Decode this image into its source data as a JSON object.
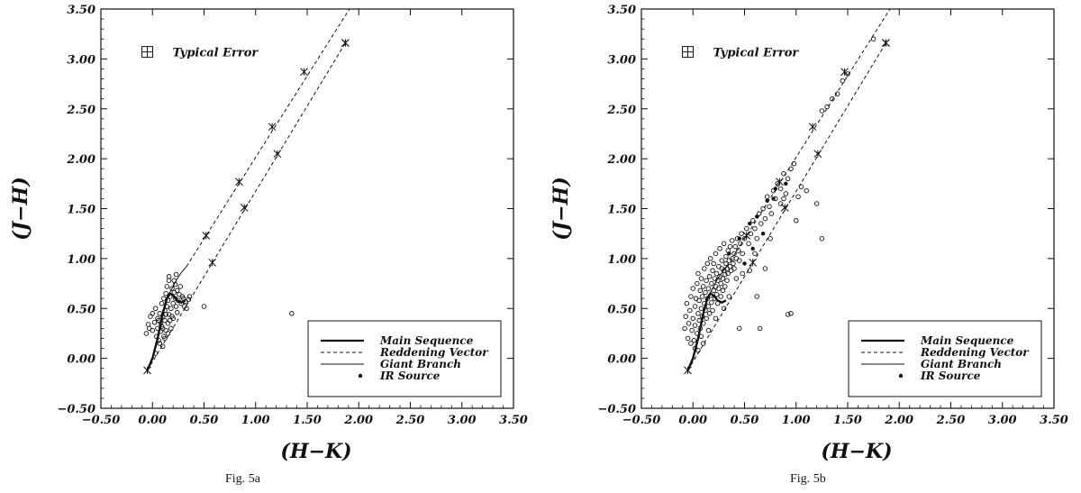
{
  "chart_data": [
    {
      "type": "scatter",
      "panel_id": "a",
      "caption_prefix": "Fig. ",
      "caption_label": "5a",
      "xlabel": "(H−K)",
      "ylabel": "(J−H)",
      "xlim": [
        -0.5,
        3.5
      ],
      "ylim": [
        -0.5,
        3.5
      ],
      "ticks": [
        "-0.50",
        "0.00",
        "0.50",
        "1.00",
        "1.50",
        "2.00",
        "2.50",
        "3.00",
        "3.50"
      ],
      "grid": false,
      "typical_error_label": "Typical Error",
      "legend": {
        "placement": "bottom-right",
        "entries": [
          {
            "label": "Main Sequence",
            "style": "thick-solid"
          },
          {
            "label": "Reddening Vector",
            "style": "dashed"
          },
          {
            "label": "Giant Branch",
            "style": "thin-solid"
          },
          {
            "label": "IR Source",
            "style": "dot"
          }
        ]
      },
      "main_sequence": [
        [
          -0.05,
          -0.12
        ],
        [
          0.0,
          0.0
        ],
        [
          0.05,
          0.2
        ],
        [
          0.1,
          0.45
        ],
        [
          0.14,
          0.6
        ],
        [
          0.17,
          0.65
        ],
        [
          0.2,
          0.63
        ],
        [
          0.24,
          0.58
        ],
        [
          0.28,
          0.56
        ],
        [
          0.32,
          0.58
        ]
      ],
      "giant_branch": [
        [
          0.12,
          0.58
        ],
        [
          0.18,
          0.68
        ],
        [
          0.23,
          0.78
        ],
        [
          0.28,
          0.86
        ],
        [
          0.33,
          0.92
        ]
      ],
      "reddening_vectors": [
        [
          [
            -0.05,
            -0.12
          ],
          [
            1.87,
            3.16
          ]
        ],
        [
          [
            0.33,
            0.92
          ],
          [
            1.91,
            3.5
          ]
        ]
      ],
      "reddening_markers": [
        [
          -0.05,
          -0.12
        ],
        [
          0.52,
          1.23
        ],
        [
          0.84,
          1.77
        ],
        [
          1.16,
          2.32
        ],
        [
          1.47,
          2.87
        ],
        [
          1.87,
          3.16
        ],
        [
          0.58,
          0.96
        ],
        [
          0.89,
          1.51
        ],
        [
          1.21,
          2.05
        ],
        [
          1.87,
          3.16
        ]
      ],
      "ir_sources": [],
      "points": [
        [
          -0.06,
          0.25
        ],
        [
          -0.04,
          0.34
        ],
        [
          -0.02,
          0.42
        ],
        [
          0.0,
          0.28
        ],
        [
          0.02,
          0.36
        ],
        [
          0.03,
          0.5
        ],
        [
          0.04,
          0.22
        ],
        [
          0.05,
          0.3
        ],
        [
          0.05,
          0.4
        ],
        [
          0.06,
          0.18
        ],
        [
          0.07,
          0.45
        ],
        [
          0.08,
          0.27
        ],
        [
          0.08,
          0.35
        ],
        [
          0.09,
          0.55
        ],
        [
          0.1,
          0.3
        ],
        [
          0.1,
          0.42
        ],
        [
          0.11,
          0.6
        ],
        [
          0.11,
          0.22
        ],
        [
          0.12,
          0.38
        ],
        [
          0.12,
          0.48
        ],
        [
          0.13,
          0.65
        ],
        [
          0.13,
          0.28
        ],
        [
          0.14,
          0.52
        ],
        [
          0.14,
          0.72
        ],
        [
          0.15,
          0.35
        ],
        [
          0.15,
          0.58
        ],
        [
          0.16,
          0.44
        ],
        [
          0.16,
          0.78
        ],
        [
          0.17,
          0.62
        ],
        [
          0.18,
          0.3
        ],
        [
          0.18,
          0.5
        ],
        [
          0.19,
          0.7
        ],
        [
          0.2,
          0.55
        ],
        [
          0.2,
          0.4
        ],
        [
          0.21,
          0.66
        ],
        [
          0.22,
          0.74
        ],
        [
          0.22,
          0.6
        ],
        [
          0.23,
          0.52
        ],
        [
          0.24,
          0.68
        ],
        [
          0.25,
          0.58
        ],
        [
          0.26,
          0.64
        ],
        [
          0.27,
          0.72
        ],
        [
          0.28,
          0.55
        ],
        [
          0.29,
          0.62
        ],
        [
          0.3,
          0.6
        ],
        [
          0.31,
          0.52
        ],
        [
          0.32,
          0.57
        ],
        [
          0.33,
          0.5
        ],
        [
          0.35,
          0.59
        ],
        [
          0.36,
          0.62
        ],
        [
          0.5,
          0.52
        ],
        [
          1.35,
          0.45
        ],
        [
          0.09,
          0.32
        ],
        [
          0.15,
          0.25
        ],
        [
          0.07,
          0.15
        ],
        [
          0.03,
          0.05
        ],
        [
          0.12,
          0.2
        ],
        [
          -0.03,
          0.3
        ],
        [
          0.0,
          0.45
        ],
        [
          0.19,
          0.42
        ],
        [
          0.24,
          0.46
        ],
        [
          0.17,
          0.38
        ],
        [
          0.1,
          0.12
        ],
        [
          0.06,
          0.38
        ],
        [
          0.13,
          0.44
        ],
        [
          0.21,
          0.78
        ],
        [
          0.23,
          0.84
        ],
        [
          0.16,
          0.82
        ]
      ]
    },
    {
      "type": "scatter",
      "panel_id": "b",
      "caption_prefix": "Fig. ",
      "caption_label": "5b",
      "xlabel": "(H−K)",
      "ylabel": "(J−H)",
      "xlim": [
        -0.5,
        3.5
      ],
      "ylim": [
        -0.5,
        3.5
      ],
      "ticks": [
        "-0.50",
        "0.00",
        "0.50",
        "1.00",
        "1.50",
        "2.00",
        "2.50",
        "3.00",
        "3.50"
      ],
      "grid": false,
      "typical_error_label": "Typical Error",
      "legend": {
        "placement": "bottom-right",
        "entries": [
          {
            "label": "Main Sequence",
            "style": "thick-solid"
          },
          {
            "label": "Reddening Vector",
            "style": "dashed"
          },
          {
            "label": "Giant Branch",
            "style": "thin-solid"
          },
          {
            "label": "IR Source",
            "style": "dot"
          }
        ]
      },
      "main_sequence": [
        [
          -0.05,
          -0.12
        ],
        [
          0.0,
          0.0
        ],
        [
          0.05,
          0.2
        ],
        [
          0.1,
          0.45
        ],
        [
          0.14,
          0.6
        ],
        [
          0.17,
          0.65
        ],
        [
          0.2,
          0.63
        ],
        [
          0.24,
          0.58
        ],
        [
          0.28,
          0.56
        ],
        [
          0.32,
          0.58
        ]
      ],
      "giant_branch": [
        [
          0.12,
          0.58
        ],
        [
          0.18,
          0.68
        ],
        [
          0.23,
          0.78
        ],
        [
          0.28,
          0.86
        ],
        [
          0.33,
          0.92
        ]
      ],
      "reddening_vectors": [
        [
          [
            -0.05,
            -0.12
          ],
          [
            1.87,
            3.16
          ]
        ],
        [
          [
            0.33,
            0.92
          ],
          [
            1.91,
            3.5
          ]
        ]
      ],
      "reddening_markers": [
        [
          -0.05,
          -0.12
        ],
        [
          0.52,
          1.23
        ],
        [
          0.84,
          1.77
        ],
        [
          1.16,
          2.32
        ],
        [
          1.47,
          2.87
        ],
        [
          1.87,
          3.16
        ],
        [
          0.58,
          0.96
        ],
        [
          0.89,
          1.51
        ],
        [
          1.21,
          2.05
        ],
        [
          1.87,
          3.16
        ]
      ],
      "ir_sources": [
        [
          0.55,
          1.35
        ],
        [
          0.62,
          1.42
        ],
        [
          0.72,
          1.58
        ],
        [
          0.8,
          1.7
        ],
        [
          0.45,
          1.2
        ],
        [
          0.35,
          1.05
        ],
        [
          0.68,
          1.25
        ],
        [
          0.5,
          0.95
        ],
        [
          0.78,
          1.6
        ],
        [
          0.9,
          1.75
        ],
        [
          0.58,
          1.1
        ]
      ],
      "points": [
        [
          -0.08,
          0.3
        ],
        [
          -0.07,
          0.42
        ],
        [
          -0.06,
          0.55
        ],
        [
          -0.05,
          0.2
        ],
        [
          -0.04,
          0.35
        ],
        [
          -0.03,
          0.48
        ],
        [
          -0.02,
          0.62
        ],
        [
          -0.01,
          0.28
        ],
        [
          0.0,
          0.4
        ],
        [
          0.0,
          0.7
        ],
        [
          0.01,
          0.18
        ],
        [
          0.02,
          0.52
        ],
        [
          0.02,
          0.33
        ],
        [
          0.03,
          0.6
        ],
        [
          0.04,
          0.75
        ],
        [
          0.04,
          0.25
        ],
        [
          0.05,
          0.45
        ],
        [
          0.05,
          0.85
        ],
        [
          0.06,
          0.38
        ],
        [
          0.06,
          0.58
        ],
        [
          0.07,
          0.68
        ],
        [
          0.07,
          0.3
        ],
        [
          0.08,
          0.5
        ],
        [
          0.08,
          0.8
        ],
        [
          0.09,
          0.42
        ],
        [
          0.09,
          0.62
        ],
        [
          0.1,
          0.72
        ],
        [
          0.1,
          0.35
        ],
        [
          0.11,
          0.55
        ],
        [
          0.11,
          0.9
        ],
        [
          0.12,
          0.48
        ],
        [
          0.12,
          0.66
        ],
        [
          0.13,
          0.78
        ],
        [
          0.13,
          0.4
        ],
        [
          0.14,
          0.6
        ],
        [
          0.14,
          0.95
        ],
        [
          0.15,
          0.52
        ],
        [
          0.15,
          0.7
        ],
        [
          0.16,
          0.82
        ],
        [
          0.16,
          0.45
        ],
        [
          0.17,
          0.63
        ],
        [
          0.17,
          1.0
        ],
        [
          0.18,
          0.56
        ],
        [
          0.18,
          0.75
        ],
        [
          0.19,
          0.88
        ],
        [
          0.19,
          0.48
        ],
        [
          0.2,
          0.68
        ],
        [
          0.2,
          0.95
        ],
        [
          0.21,
          0.6
        ],
        [
          0.21,
          0.8
        ],
        [
          0.22,
          0.72
        ],
        [
          0.22,
          1.05
        ],
        [
          0.23,
          0.64
        ],
        [
          0.23,
          0.85
        ],
        [
          0.24,
          0.78
        ],
        [
          0.24,
          0.55
        ],
        [
          0.25,
          0.92
        ],
        [
          0.25,
          0.7
        ],
        [
          0.26,
          0.82
        ],
        [
          0.26,
          1.1
        ],
        [
          0.27,
          0.75
        ],
        [
          0.27,
          0.62
        ],
        [
          0.28,
          0.9
        ],
        [
          0.28,
          0.98
        ],
        [
          0.29,
          0.8
        ],
        [
          0.29,
          0.68
        ],
        [
          0.3,
          0.88
        ],
        [
          0.3,
          1.15
        ],
        [
          0.31,
          0.84
        ],
        [
          0.31,
          0.72
        ],
        [
          0.32,
          0.95
        ],
        [
          0.32,
          1.02
        ],
        [
          0.33,
          0.78
        ],
        [
          0.33,
          0.9
        ],
        [
          0.34,
          1.08
        ],
        [
          0.34,
          0.85
        ],
        [
          0.35,
          0.98
        ],
        [
          0.36,
          0.92
        ],
        [
          0.36,
          1.12
        ],
        [
          0.37,
          0.88
        ],
        [
          0.38,
          1.0
        ],
        [
          0.38,
          1.18
        ],
        [
          0.39,
          0.95
        ],
        [
          0.4,
          1.05
        ],
        [
          0.4,
          0.9
        ],
        [
          0.41,
          1.12
        ],
        [
          0.42,
          1.0
        ],
        [
          0.43,
          1.2
        ],
        [
          0.44,
          1.08
        ],
        [
          0.45,
          0.98
        ],
        [
          0.46,
          1.15
        ],
        [
          0.47,
          1.25
        ],
        [
          0.48,
          1.05
        ],
        [
          0.5,
          1.2
        ],
        [
          0.52,
          1.3
        ],
        [
          0.54,
          1.15
        ],
        [
          0.56,
          1.25
        ],
        [
          0.58,
          1.38
        ],
        [
          0.6,
          1.3
        ],
        [
          0.62,
          1.2
        ],
        [
          0.64,
          1.45
        ],
        [
          0.66,
          1.35
        ],
        [
          0.68,
          1.5
        ],
        [
          0.7,
          1.4
        ],
        [
          0.72,
          1.62
        ],
        [
          0.74,
          1.52
        ],
        [
          0.76,
          1.45
        ],
        [
          0.78,
          1.68
        ],
        [
          0.8,
          1.6
        ],
        [
          0.82,
          1.75
        ],
        [
          0.85,
          1.7
        ],
        [
          0.88,
          1.85
        ],
        [
          0.9,
          1.65
        ],
        [
          0.92,
          1.8
        ],
        [
          0.95,
          1.9
        ],
        [
          0.98,
          1.95
        ],
        [
          1.02,
          1.62
        ],
        [
          1.05,
          1.72
        ],
        [
          1.1,
          1.68
        ],
        [
          1.2,
          1.55
        ],
        [
          1.25,
          2.48
        ],
        [
          1.3,
          2.52
        ],
        [
          1.35,
          2.6
        ],
        [
          1.4,
          2.65
        ],
        [
          1.45,
          2.78
        ],
        [
          1.5,
          2.85
        ],
        [
          1.75,
          3.2
        ],
        [
          1.25,
          1.2
        ],
        [
          1.0,
          1.38
        ],
        [
          0.95,
          0.45
        ],
        [
          0.92,
          0.44
        ],
        [
          0.65,
          0.3
        ],
        [
          0.45,
          0.3
        ],
        [
          0.62,
          0.62
        ],
        [
          0.55,
          0.88
        ],
        [
          0.7,
          0.9
        ],
        [
          0.1,
          0.15
        ],
        [
          0.05,
          0.08
        ],
        [
          0.15,
          0.28
        ],
        [
          0.22,
          0.4
        ],
        [
          0.3,
          0.5
        ],
        [
          0.35,
          0.62
        ],
        [
          0.42,
          0.8
        ],
        [
          0.48,
          0.85
        ],
        [
          0.6,
          1.05
        ],
        [
          0.75,
          1.2
        ],
        [
          0.85,
          1.55
        ],
        [
          0.88,
          1.6
        ],
        [
          0.02,
          0.1
        ],
        [
          -0.02,
          0.15
        ],
        [
          0.08,
          0.22
        ]
      ]
    }
  ]
}
